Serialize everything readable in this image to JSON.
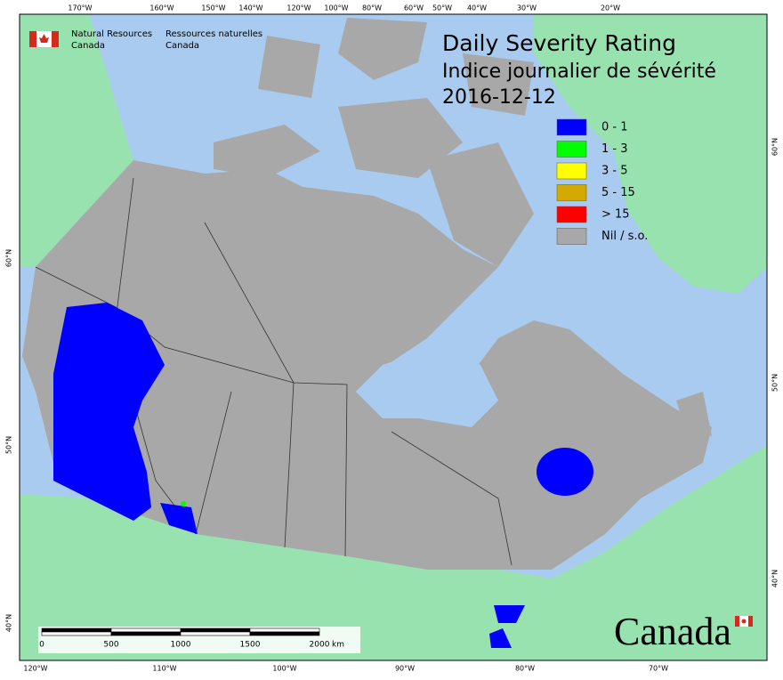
{
  "header": {
    "org_en": [
      "Natural Resources",
      "Canada"
    ],
    "org_fr": [
      "Ressources naturelles",
      "Canada"
    ]
  },
  "title": [
    "Daily Severity Rating",
    "Indice journalier de sévérité",
    "2016-12-12"
  ],
  "legend": [
    {
      "label": "0 - 1",
      "color": "#0000ff"
    },
    {
      "label": "1 - 3",
      "color": "#00ff00"
    },
    {
      "label": "3 - 5",
      "color": "#ffff00"
    },
    {
      "label": "5 - 15",
      "color": "#d4aa00"
    },
    {
      "label": "> 15",
      "color": "#ff0000"
    },
    {
      "label": "Nil / s.o.",
      "color": "#a8a8a8"
    }
  ],
  "graticule": {
    "top": [
      "170°W",
      "160°W",
      "150°W",
      "140°W",
      "120°W",
      "100°W",
      "80°W",
      "60°W",
      "50°W",
      "40°W",
      "30°W",
      "20°W"
    ],
    "bottom": [
      "120°W",
      "110°W",
      "100°W",
      "90°W",
      "80°W",
      "70°W"
    ],
    "left": [
      "60°N",
      "50°N",
      "40°N"
    ],
    "right": [
      "60°N",
      "50°N",
      "40°N"
    ]
  },
  "scale_bar": {
    "labels": [
      "0",
      "500",
      "1000",
      "1500",
      "2000"
    ],
    "unit": "km"
  },
  "wordmark": "Canada"
}
